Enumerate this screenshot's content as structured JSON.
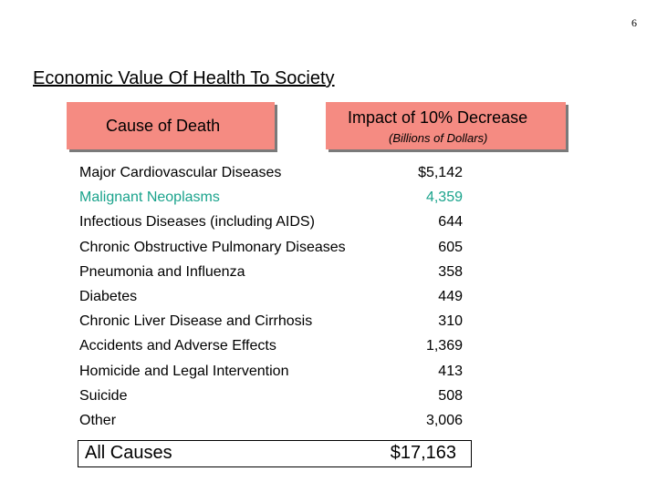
{
  "page_number": "6",
  "title": "Economic Value Of Health To Society",
  "headers": {
    "cause": "Cause of Death",
    "impact": "Impact of 10% Decrease",
    "impact_unit": "(Billions of Dollars)"
  },
  "rows": [
    {
      "cause": "Major Cardiovascular Diseases",
      "value": "$5,142"
    },
    {
      "cause": "Malignant Neoplasms",
      "value": "4,359"
    },
    {
      "cause": "Infectious Diseases (including AIDS)",
      "value": "644"
    },
    {
      "cause": "Chronic Obstructive Pulmonary Diseases",
      "value": "605"
    },
    {
      "cause": "Pneumonia and Influenza",
      "value": "358"
    },
    {
      "cause": "Diabetes",
      "value": "449"
    },
    {
      "cause": "Chronic Liver Disease and Cirrhosis",
      "value": "310"
    },
    {
      "cause": "Accidents and Adverse Effects",
      "value": "1,369"
    },
    {
      "cause": "Homicide and Legal Intervention",
      "value": "413"
    },
    {
      "cause": "Suicide",
      "value": "508"
    },
    {
      "cause": "Other",
      "value": "3,006"
    }
  ],
  "total": {
    "cause": "All Causes",
    "value": "$17,163"
  },
  "colors": {
    "header_fill": "#f58b82",
    "highlight_text": "#1aa38c"
  }
}
